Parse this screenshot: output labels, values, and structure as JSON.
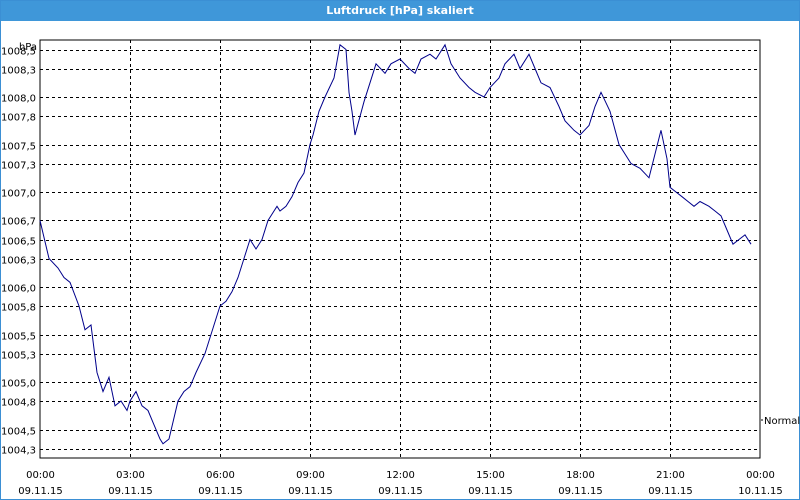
{
  "window": {
    "title": "Luftdruck [hPa] skaliert"
  },
  "chart_data": {
    "type": "line",
    "title": "Luftdruck [hPa] skaliert",
    "ylabel": "hPa",
    "xlabel": "",
    "ylim": [
      1004.2,
      1008.6
    ],
    "xlim": [
      0,
      24
    ],
    "yticks": [
      1004.3,
      1004.5,
      1004.8,
      1005.0,
      1005.3,
      1005.5,
      1005.8,
      1006.0,
      1006.3,
      1006.5,
      1006.7,
      1007.0,
      1007.3,
      1007.5,
      1007.8,
      1008.0,
      1008.3,
      1008.5
    ],
    "ytick_labels": [
      "1004,3",
      "1004,5",
      "1004,8",
      "1005,0",
      "1005,3",
      "1005,5",
      "1005,8",
      "1006,0",
      "1006,3",
      "1006,5",
      "1006,7",
      "1007,0",
      "1007,3",
      "1007,5",
      "1007,8",
      "1008,0",
      "1008,3",
      "1008,5"
    ],
    "xticks": [
      {
        "time": "00:00",
        "date": "09.11.15"
      },
      {
        "time": "03:00",
        "date": "09.11.15"
      },
      {
        "time": "06:00",
        "date": "09.11.15"
      },
      {
        "time": "09:00",
        "date": "09.11.15"
      },
      {
        "time": "12:00",
        "date": "09.11.15"
      },
      {
        "time": "15:00",
        "date": "09.11.15"
      },
      {
        "time": "18:00",
        "date": "09.11.15"
      },
      {
        "time": "21:00",
        "date": "09.11.15"
      },
      {
        "time": "00:00",
        "date": "10.11.15"
      }
    ],
    "grid": true,
    "legend_position": "right",
    "series": [
      {
        "name": "Normal",
        "color": "#00008b",
        "x": [
          0.0,
          0.3,
          0.6,
          0.8,
          1.0,
          1.3,
          1.5,
          1.7,
          1.9,
          2.1,
          2.3,
          2.5,
          2.7,
          2.9,
          3.0,
          3.2,
          3.4,
          3.6,
          3.8,
          4.0,
          4.1,
          4.3,
          4.6,
          4.8,
          5.0,
          5.2,
          5.5,
          5.7,
          5.9,
          6.0,
          6.2,
          6.4,
          6.6,
          6.8,
          7.0,
          7.2,
          7.4,
          7.6,
          7.8,
          7.9,
          8.0,
          8.2,
          8.4,
          8.6,
          8.8,
          9.0,
          9.1,
          9.3,
          9.5,
          9.8,
          10.0,
          10.2,
          10.3,
          10.4,
          10.5,
          10.8,
          11.0,
          11.2,
          11.5,
          11.7,
          12.0,
          12.3,
          12.5,
          12.7,
          13.0,
          13.2,
          13.5,
          13.7,
          14.0,
          14.3,
          14.5,
          14.8,
          15.0,
          15.3,
          15.5,
          15.8,
          16.0,
          16.3,
          16.5,
          16.7,
          17.0,
          17.3,
          17.5,
          17.8,
          18.0,
          18.3,
          18.5,
          18.7,
          19.0,
          19.3,
          19.5,
          19.7,
          20.0,
          20.3,
          20.5,
          20.7,
          20.9,
          21.0,
          21.2,
          21.4,
          21.6,
          21.8,
          22.0,
          22.3,
          22.5,
          22.7,
          22.9,
          23.1,
          23.3,
          23.5,
          23.7
        ],
        "y": [
          1006.7,
          1006.3,
          1006.2,
          1006.1,
          1006.05,
          1005.8,
          1005.55,
          1005.6,
          1005.1,
          1004.9,
          1005.05,
          1004.75,
          1004.8,
          1004.7,
          1004.8,
          1004.9,
          1004.75,
          1004.7,
          1004.55,
          1004.4,
          1004.35,
          1004.4,
          1004.8,
          1004.9,
          1004.95,
          1005.1,
          1005.3,
          1005.5,
          1005.7,
          1005.8,
          1005.85,
          1005.95,
          1006.1,
          1006.3,
          1006.5,
          1006.4,
          1006.5,
          1006.7,
          1006.8,
          1006.85,
          1006.8,
          1006.85,
          1006.95,
          1007.1,
          1007.2,
          1007.5,
          1007.6,
          1007.85,
          1008.0,
          1008.2,
          1008.55,
          1008.5,
          1008.05,
          1007.85,
          1007.6,
          1007.95,
          1008.15,
          1008.35,
          1008.25,
          1008.35,
          1008.4,
          1008.3,
          1008.25,
          1008.4,
          1008.45,
          1008.4,
          1008.55,
          1008.35,
          1008.2,
          1008.1,
          1008.05,
          1008.0,
          1008.1,
          1008.2,
          1008.35,
          1008.45,
          1008.3,
          1008.45,
          1008.3,
          1008.15,
          1008.1,
          1007.9,
          1007.75,
          1007.65,
          1007.6,
          1007.7,
          1007.9,
          1008.05,
          1007.85,
          1007.5,
          1007.4,
          1007.3,
          1007.25,
          1007.15,
          1007.4,
          1007.65,
          1007.35,
          1007.05,
          1007.0,
          1006.95,
          1006.9,
          1006.85,
          1006.9,
          1006.85,
          1006.8,
          1006.75,
          1006.6,
          1006.45,
          1006.5,
          1006.55,
          1006.45
        ]
      }
    ]
  }
}
